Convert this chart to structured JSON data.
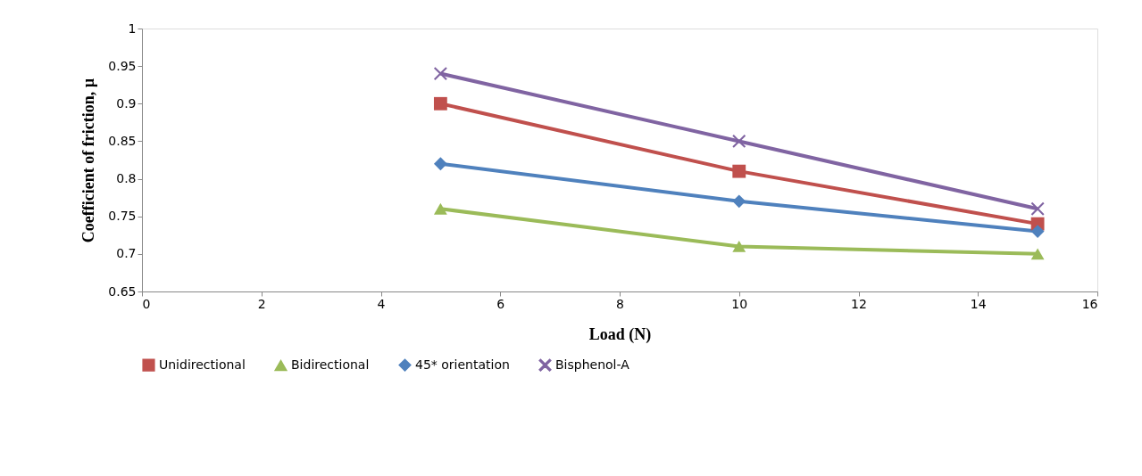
{
  "chart_data": {
    "type": "line",
    "xlabel": "Load (N)",
    "ylabel": "Coefficient of friction, µ",
    "x": [
      5,
      10,
      15
    ],
    "series": [
      {
        "name": "Unidirectional",
        "color": "#c0504d",
        "marker": "square",
        "values": [
          0.9,
          0.81,
          0.74
        ]
      },
      {
        "name": "Bidirectional",
        "color": "#9bbb59",
        "marker": "triangle",
        "values": [
          0.76,
          0.71,
          0.7
        ]
      },
      {
        "name": "45* orientation",
        "color": "#4f81bd",
        "marker": "diamond",
        "values": [
          0.82,
          0.77,
          0.73
        ]
      },
      {
        "name": "Bisphenol-A",
        "color": "#8064a2",
        "marker": "cross",
        "values": [
          0.94,
          0.85,
          0.76
        ]
      }
    ],
    "xlim": [
      0,
      16
    ],
    "xticks": [
      0,
      2,
      4,
      6,
      8,
      10,
      12,
      14,
      16
    ],
    "ylim": [
      0.65,
      1
    ],
    "yticks": [
      0.65,
      0.7,
      0.75,
      0.8,
      0.85,
      0.9,
      0.95,
      1
    ],
    "grid": false,
    "legend": "bottom",
    "line_style": "solid"
  }
}
